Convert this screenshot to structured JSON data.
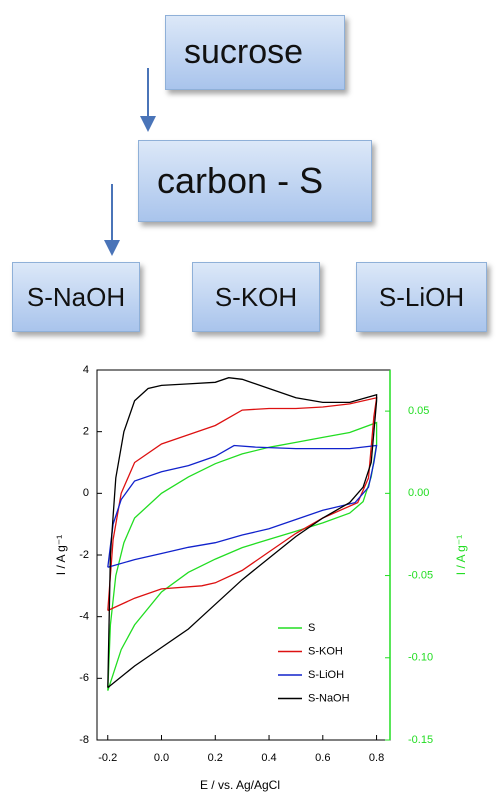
{
  "diagram": {
    "nodes": [
      {
        "label": "sucrose"
      },
      {
        "label": "carbon - S"
      },
      {
        "label": "S-NaOH"
      },
      {
        "label": "S-KOH"
      },
      {
        "label": "S-LiOH"
      }
    ]
  },
  "chart_data": {
    "type": "line",
    "x_label": "E / vs. Ag/AgCl",
    "y_label": "I / A g⁻¹",
    "y2_label": "I / A g⁻¹",
    "xlim": [
      -0.24,
      0.85
    ],
    "xticks": [
      -0.2,
      {
        "value": 0,
        "label": "0.0"
      },
      0.2,
      0.4,
      0.6,
      0.8
    ],
    "ylim": [
      -8,
      4
    ],
    "yticks": [
      -8,
      -6,
      -4,
      -2,
      0,
      2,
      4
    ],
    "y2lim": [
      -0.15,
      0.075
    ],
    "y2ticks": [
      -0.15,
      {
        "value": -0.1,
        "label": "-0.10"
      },
      -0.05,
      {
        "value": 0,
        "label": "0.00"
      },
      0.05
    ],
    "y2_color": "#22dd22",
    "grid": false,
    "legend": "lower-right",
    "series": [
      {
        "name": "S",
        "color": "#22dd22",
        "axis": "y2",
        "x": [
          -0.2,
          -0.19,
          -0.17,
          -0.14,
          -0.1,
          0.0,
          0.1,
          0.2,
          0.3,
          0.4,
          0.5,
          0.6,
          0.7,
          0.8,
          0.8,
          0.78,
          0.75,
          0.7,
          0.6,
          0.5,
          0.4,
          0.3,
          0.2,
          0.1,
          0.0,
          -0.1,
          -0.15,
          -0.2
        ],
        "values": [
          -0.12,
          -0.08,
          -0.05,
          -0.03,
          -0.015,
          0.0,
          0.01,
          0.018,
          0.024,
          0.028,
          0.031,
          0.034,
          0.037,
          0.043,
          0.03,
          0.01,
          -0.005,
          -0.012,
          -0.018,
          -0.023,
          -0.028,
          -0.033,
          -0.04,
          -0.048,
          -0.06,
          -0.08,
          -0.095,
          -0.12
        ]
      },
      {
        "name": "S-KOH",
        "color": "#dd1111",
        "x": [
          -0.2,
          -0.18,
          -0.15,
          -0.1,
          0.0,
          0.1,
          0.2,
          0.3,
          0.4,
          0.5,
          0.6,
          0.7,
          0.8,
          0.79,
          0.77,
          0.73,
          0.6,
          0.5,
          0.4,
          0.3,
          0.2,
          0.15,
          0.0,
          -0.1,
          -0.2
        ],
        "values": [
          -3.8,
          -1.5,
          0,
          1,
          1.6,
          1.9,
          2.2,
          2.7,
          2.75,
          2.75,
          2.8,
          2.9,
          3.1,
          2.5,
          0.5,
          -0.3,
          -0.8,
          -1.3,
          -1.9,
          -2.5,
          -2.9,
          -3,
          -3.1,
          -3.4,
          -3.8
        ]
      },
      {
        "name": "S-LiOH",
        "color": "#1122cc",
        "x": [
          -0.2,
          -0.18,
          -0.15,
          -0.1,
          0.0,
          0.1,
          0.2,
          0.27,
          0.35,
          0.5,
          0.6,
          0.7,
          0.8,
          0.79,
          0.77,
          0.72,
          0.6,
          0.5,
          0.4,
          0.3,
          0.2,
          0.1,
          0.0,
          -0.1,
          -0.2
        ],
        "values": [
          -2.4,
          -1,
          -0.2,
          0.4,
          0.7,
          0.9,
          1.2,
          1.55,
          1.5,
          1.45,
          1.45,
          1.45,
          1.55,
          1,
          0.2,
          -0.3,
          -0.55,
          -0.85,
          -1.15,
          -1.35,
          -1.6,
          -1.75,
          -1.95,
          -2.15,
          -2.4
        ]
      },
      {
        "name": "S-NaOH",
        "color": "#000000",
        "x": [
          -0.2,
          -0.19,
          -0.17,
          -0.14,
          -0.1,
          -0.05,
          0.0,
          0.1,
          0.2,
          0.25,
          0.3,
          0.4,
          0.5,
          0.6,
          0.7,
          0.8,
          0.8,
          0.78,
          0.75,
          0.7,
          0.6,
          0.5,
          0.4,
          0.3,
          0.2,
          0.15,
          0.1,
          0.0,
          -0.1,
          -0.2
        ],
        "values": [
          -6.3,
          -2,
          0.5,
          2,
          3,
          3.4,
          3.5,
          3.55,
          3.6,
          3.75,
          3.7,
          3.4,
          3.1,
          2.95,
          2.95,
          3.2,
          3.0,
          1,
          0.2,
          -0.3,
          -0.8,
          -1.4,
          -2.1,
          -2.8,
          -3.6,
          -4,
          -4.4,
          -5,
          -5.6,
          -6.3
        ]
      }
    ]
  }
}
